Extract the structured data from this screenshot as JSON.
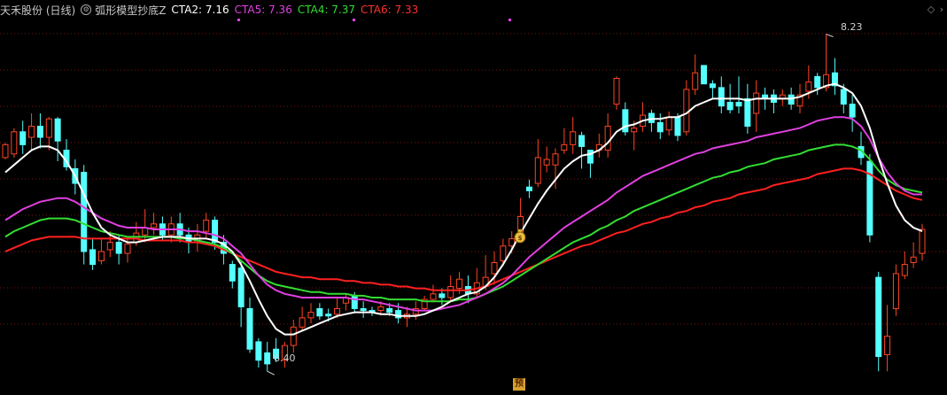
{
  "header": {
    "stock": "天禾股份 (日线)",
    "indicator": "弧形模型抄底Z",
    "cta2": "CTA2: 7.16",
    "cta5": "CTA5: 7.36",
    "cta4": "CTA4: 7.37",
    "cta6": "CTA6: 7.33"
  },
  "colors": {
    "up": "#ff4422",
    "down": "#55ffff",
    "cta2": "#ffffff",
    "cta5": "#e040e0",
    "cta4": "#33dd33",
    "cta6": "#ff2020",
    "grid": "#7a1515"
  },
  "markers": {
    "high_label": "8.23",
    "low_label": "6.40",
    "yu_label": "预"
  },
  "icons": {
    "indicator": "settings-icon",
    "diamond": "diamond-icon",
    "arrow": "chevron-icon",
    "moneybag": "money-bag-icon"
  },
  "chart_data": {
    "type": "candlestick",
    "ylim": [
      6.3,
      8.3
    ],
    "candles": [
      [
        7.56,
        7.63,
        7.64,
        7.55
      ],
      [
        7.58,
        7.7,
        7.72,
        7.56
      ],
      [
        7.7,
        7.63,
        7.76,
        7.58
      ],
      [
        7.67,
        7.73,
        7.8,
        7.6
      ],
      [
        7.73,
        7.67,
        7.8,
        7.61
      ],
      [
        7.67,
        7.77,
        7.78,
        7.6
      ],
      [
        7.77,
        7.65,
        7.78,
        7.54
      ],
      [
        7.6,
        7.51,
        7.66,
        7.49
      ],
      [
        7.5,
        7.42,
        7.55,
        7.36
      ],
      [
        7.48,
        7.05,
        7.52,
        6.98
      ],
      [
        7.06,
        6.98,
        7.12,
        6.95
      ],
      [
        7.0,
        7.05,
        7.12,
        6.98
      ],
      [
        7.06,
        7.1,
        7.16,
        7.02
      ],
      [
        7.1,
        7.04,
        7.14,
        6.98
      ],
      [
        7.04,
        7.09,
        7.12,
        6.99
      ],
      [
        7.1,
        7.15,
        7.21,
        7.08
      ],
      [
        7.14,
        7.18,
        7.28,
        7.1
      ],
      [
        7.18,
        7.2,
        7.26,
        7.14
      ],
      [
        7.2,
        7.14,
        7.24,
        7.11
      ],
      [
        7.14,
        7.2,
        7.24,
        7.1
      ],
      [
        7.2,
        7.14,
        7.26,
        7.1
      ],
      [
        7.14,
        7.1,
        7.18,
        7.04
      ],
      [
        7.1,
        7.14,
        7.2,
        7.05
      ],
      [
        7.16,
        7.22,
        7.26,
        7.12
      ],
      [
        7.22,
        7.1,
        7.24,
        7.06
      ],
      [
        7.1,
        7.04,
        7.14,
        6.98
      ],
      [
        6.98,
        6.89,
        7.0,
        6.85
      ],
      [
        6.96,
        6.75,
        7.0,
        6.64
      ],
      [
        6.74,
        6.52,
        6.8,
        6.5
      ],
      [
        6.56,
        6.46,
        6.58,
        6.42
      ],
      [
        6.5,
        6.44,
        6.56,
        6.4
      ],
      [
        6.52,
        6.47,
        6.58,
        6.45
      ],
      [
        6.46,
        6.54,
        6.56,
        6.42
      ],
      [
        6.54,
        6.64,
        6.68,
        6.5
      ],
      [
        6.64,
        6.69,
        6.75,
        6.62
      ],
      [
        6.69,
        6.72,
        6.77,
        6.66
      ],
      [
        6.74,
        6.7,
        6.77,
        6.68
      ],
      [
        6.71,
        6.7,
        6.74,
        6.67
      ],
      [
        6.71,
        6.74,
        6.8,
        6.69
      ],
      [
        6.77,
        6.8,
        6.82,
        6.73
      ],
      [
        6.81,
        6.74,
        6.83,
        6.72
      ],
      [
        6.74,
        6.73,
        6.78,
        6.69
      ],
      [
        6.73,
        6.72,
        6.75,
        6.7
      ],
      [
        6.73,
        6.75,
        6.78,
        6.71
      ],
      [
        6.74,
        6.72,
        6.77,
        6.7
      ],
      [
        6.73,
        6.69,
        6.77,
        6.66
      ],
      [
        6.69,
        6.71,
        6.75,
        6.64
      ],
      [
        6.71,
        6.74,
        6.78,
        6.68
      ],
      [
        6.74,
        6.79,
        6.81,
        6.73
      ],
      [
        6.79,
        6.82,
        6.87,
        6.78
      ],
      [
        6.82,
        6.8,
        6.85,
        6.76
      ],
      [
        6.8,
        6.86,
        6.92,
        6.78
      ],
      [
        6.85,
        6.9,
        6.94,
        6.82
      ],
      [
        6.86,
        6.82,
        6.92,
        6.77
      ],
      [
        6.82,
        6.88,
        6.96,
        6.8
      ],
      [
        6.86,
        6.91,
        7.03,
        6.84
      ],
      [
        6.93,
        6.99,
        7.05,
        6.87
      ],
      [
        7.0,
        7.08,
        7.12,
        6.97
      ],
      [
        7.08,
        7.12,
        7.16,
        7.04
      ],
      [
        7.13,
        7.24,
        7.34,
        7.1
      ],
      [
        7.4,
        7.38,
        7.44,
        7.34
      ],
      [
        7.42,
        7.56,
        7.66,
        7.4
      ],
      [
        7.52,
        7.55,
        7.62,
        7.48
      ],
      [
        7.52,
        7.58,
        7.61,
        7.39
      ],
      [
        7.6,
        7.63,
        7.72,
        7.58
      ],
      [
        7.63,
        7.7,
        7.78,
        7.58
      ],
      [
        7.68,
        7.62,
        7.7,
        7.5
      ],
      [
        7.6,
        7.53,
        7.6,
        7.45
      ],
      [
        7.6,
        7.63,
        7.69,
        7.56
      ],
      [
        7.6,
        7.73,
        7.8,
        7.56
      ],
      [
        7.85,
        7.99,
        8.0,
        7.82
      ],
      [
        7.82,
        7.7,
        7.86,
        7.68
      ],
      [
        7.7,
        7.72,
        7.76,
        7.6
      ],
      [
        7.73,
        7.79,
        7.86,
        7.7
      ],
      [
        7.8,
        7.75,
        7.82,
        7.7
      ],
      [
        7.75,
        7.7,
        7.8,
        7.66
      ],
      [
        7.71,
        7.78,
        7.81,
        7.68
      ],
      [
        7.78,
        7.68,
        7.8,
        7.65
      ],
      [
        7.7,
        7.93,
        7.98,
        7.68
      ],
      [
        7.93,
        8.02,
        8.12,
        7.9
      ],
      [
        8.06,
        7.96,
        8.06,
        7.96
      ],
      [
        7.96,
        7.94,
        7.98,
        7.88
      ],
      [
        7.94,
        7.84,
        8.0,
        7.8
      ],
      [
        7.86,
        7.82,
        7.96,
        7.8
      ],
      [
        7.86,
        7.84,
        8.0,
        7.8
      ],
      [
        7.88,
        7.73,
        7.96,
        7.69
      ],
      [
        7.8,
        7.91,
        7.98,
        7.7
      ],
      [
        7.9,
        7.88,
        7.94,
        7.82
      ],
      [
        7.9,
        7.86,
        7.93,
        7.8
      ],
      [
        7.88,
        7.9,
        7.93,
        7.84
      ],
      [
        7.9,
        7.85,
        7.94,
        7.82
      ],
      [
        7.84,
        7.9,
        7.96,
        7.8
      ],
      [
        7.92,
        7.97,
        8.06,
        7.88
      ],
      [
        8.0,
        7.94,
        8.02,
        7.9
      ],
      [
        7.94,
        8.01,
        8.23,
        7.92
      ],
      [
        8.02,
        7.95,
        8.1,
        7.9
      ],
      [
        7.93,
        7.85,
        7.96,
        7.8
      ],
      [
        7.85,
        7.78,
        7.9,
        7.7
      ],
      [
        7.62,
        7.56,
        7.7,
        7.52
      ],
      [
        7.54,
        7.14,
        7.58,
        7.1
      ],
      [
        6.91,
        6.48,
        6.94,
        6.4
      ],
      [
        6.49,
        6.59,
        6.76,
        6.4
      ],
      [
        6.74,
        6.93,
        6.98,
        6.7
      ],
      [
        6.92,
        6.98,
        7.05,
        6.9
      ],
      [
        6.99,
        7.02,
        7.1,
        6.96
      ],
      [
        7.04,
        7.17,
        7.2,
        7.0
      ]
    ],
    "cta2": [
      7.48,
      7.52,
      7.56,
      7.6,
      7.62,
      7.62,
      7.6,
      7.54,
      7.46,
      7.36,
      7.26,
      7.18,
      7.14,
      7.12,
      7.1,
      7.1,
      7.11,
      7.12,
      7.13,
      7.13,
      7.13,
      7.12,
      7.12,
      7.12,
      7.11,
      7.09,
      7.05,
      6.98,
      6.89,
      6.79,
      6.7,
      6.63,
      6.6,
      6.6,
      6.62,
      6.64,
      6.66,
      6.68,
      6.7,
      6.71,
      6.72,
      6.72,
      6.72,
      6.71,
      6.71,
      6.7,
      6.7,
      6.7,
      6.71,
      6.73,
      6.75,
      6.78,
      6.8,
      6.82,
      6.83,
      6.86,
      6.91,
      6.98,
      7.06,
      7.15,
      7.23,
      7.31,
      7.38,
      7.44,
      7.5,
      7.54,
      7.57,
      7.58,
      7.6,
      7.64,
      7.7,
      7.73,
      7.74,
      7.76,
      7.77,
      7.77,
      7.78,
      7.78,
      7.8,
      7.84,
      7.86,
      7.88,
      7.88,
      7.88,
      7.88,
      7.87,
      7.88,
      7.88,
      7.88,
      7.88,
      7.88,
      7.89,
      7.91,
      7.93,
      7.95,
      7.96,
      7.94,
      7.91,
      7.84,
      7.72,
      7.56,
      7.42,
      7.3,
      7.22,
      7.18,
      7.16
    ],
    "cta5": [
      7.22,
      7.25,
      7.28,
      7.3,
      7.32,
      7.33,
      7.34,
      7.34,
      7.32,
      7.29,
      7.26,
      7.23,
      7.21,
      7.19,
      7.18,
      7.18,
      7.18,
      7.17,
      7.17,
      7.17,
      7.17,
      7.16,
      7.16,
      7.15,
      7.14,
      7.12,
      7.08,
      7.04,
      6.98,
      6.92,
      6.87,
      6.84,
      6.82,
      6.81,
      6.8,
      6.8,
      6.8,
      6.8,
      6.8,
      6.8,
      6.79,
      6.79,
      6.78,
      6.77,
      6.76,
      6.75,
      6.74,
      6.73,
      6.73,
      6.73,
      6.74,
      6.75,
      6.76,
      6.78,
      6.8,
      6.82,
      6.85,
      6.88,
      6.92,
      6.97,
      7.02,
      7.06,
      7.1,
      7.14,
      7.18,
      7.21,
      7.24,
      7.27,
      7.3,
      7.33,
      7.37,
      7.4,
      7.43,
      7.46,
      7.48,
      7.5,
      7.52,
      7.54,
      7.56,
      7.58,
      7.59,
      7.61,
      7.62,
      7.63,
      7.64,
      7.65,
      7.67,
      7.68,
      7.69,
      7.7,
      7.71,
      7.72,
      7.74,
      7.76,
      7.77,
      7.78,
      7.78,
      7.77,
      7.73,
      7.66,
      7.56,
      7.48,
      7.42,
      7.38,
      7.36,
      7.36
    ],
    "cta4": [
      7.13,
      7.16,
      7.18,
      7.2,
      7.22,
      7.23,
      7.23,
      7.23,
      7.22,
      7.2,
      7.18,
      7.16,
      7.15,
      7.14,
      7.13,
      7.13,
      7.13,
      7.13,
      7.13,
      7.13,
      7.12,
      7.12,
      7.11,
      7.1,
      7.09,
      7.07,
      7.04,
      7.0,
      6.96,
      6.92,
      6.89,
      6.87,
      6.86,
      6.85,
      6.84,
      6.83,
      6.83,
      6.82,
      6.82,
      6.82,
      6.81,
      6.81,
      6.8,
      6.8,
      6.79,
      6.79,
      6.79,
      6.79,
      6.78,
      6.78,
      6.78,
      6.78,
      6.79,
      6.79,
      6.8,
      6.82,
      6.84,
      6.86,
      6.89,
      6.92,
      6.95,
      6.98,
      7.01,
      7.04,
      7.07,
      7.1,
      7.12,
      7.14,
      7.17,
      7.19,
      7.22,
      7.24,
      7.27,
      7.29,
      7.31,
      7.33,
      7.35,
      7.37,
      7.39,
      7.41,
      7.43,
      7.45,
      7.46,
      7.48,
      7.49,
      7.51,
      7.52,
      7.53,
      7.55,
      7.56,
      7.57,
      7.58,
      7.6,
      7.61,
      7.62,
      7.63,
      7.63,
      7.62,
      7.6,
      7.55,
      7.49,
      7.44,
      7.41,
      7.39,
      7.38,
      7.37
    ],
    "cta6": [
      7.05,
      7.07,
      7.09,
      7.11,
      7.12,
      7.13,
      7.13,
      7.13,
      7.13,
      7.12,
      7.12,
      7.12,
      7.12,
      7.12,
      7.12,
      7.12,
      7.11,
      7.11,
      7.11,
      7.11,
      7.11,
      7.1,
      7.1,
      7.09,
      7.08,
      7.06,
      7.04,
      7.02,
      7.0,
      6.98,
      6.96,
      6.94,
      6.93,
      6.92,
      6.91,
      6.91,
      6.9,
      6.9,
      6.9,
      6.89,
      6.89,
      6.88,
      6.88,
      6.87,
      6.87,
      6.86,
      6.86,
      6.85,
      6.85,
      6.84,
      6.84,
      6.84,
      6.84,
      6.84,
      6.85,
      6.86,
      6.88,
      6.9,
      6.92,
      6.94,
      6.96,
      6.98,
      7.0,
      7.02,
      7.04,
      7.06,
      7.08,
      7.09,
      7.11,
      7.13,
      7.15,
      7.16,
      7.18,
      7.2,
      7.21,
      7.23,
      7.24,
      7.26,
      7.27,
      7.29,
      7.3,
      7.32,
      7.33,
      7.34,
      7.36,
      7.37,
      7.38,
      7.39,
      7.41,
      7.42,
      7.43,
      7.44,
      7.45,
      7.47,
      7.48,
      7.49,
      7.5,
      7.5,
      7.49,
      7.47,
      7.44,
      7.41,
      7.38,
      7.36,
      7.34,
      7.33
    ]
  }
}
